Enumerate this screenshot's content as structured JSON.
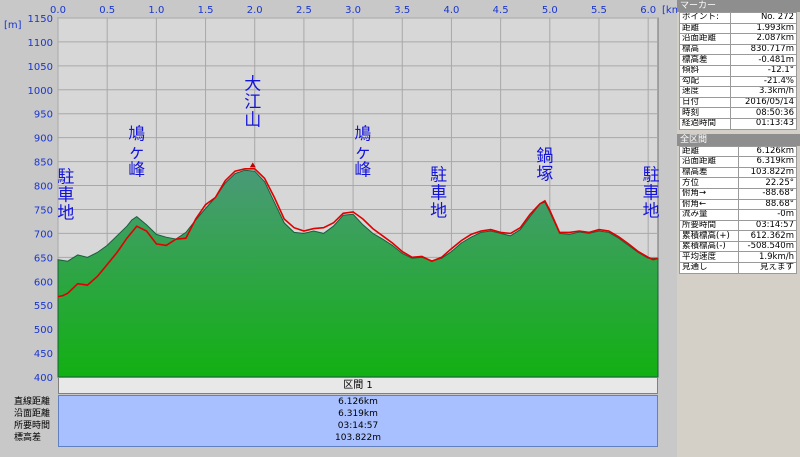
{
  "chart_data": {
    "type": "area",
    "x_unit": "[km]",
    "y_unit": "[m]",
    "xlim": [
      0,
      6.1
    ],
    "ylim": [
      400,
      1150
    ],
    "x_ticks": [
      "0.0",
      "0.5",
      "1.0",
      "1.5",
      "2.0",
      "2.5",
      "3.0",
      "3.5",
      "4.0",
      "4.5",
      "5.0",
      "5.5",
      "6.0"
    ],
    "y_ticks": [
      "400",
      "450",
      "500",
      "550",
      "600",
      "650",
      "700",
      "750",
      "800",
      "850",
      "900",
      "950",
      "1000",
      "1050",
      "1100",
      "1150"
    ],
    "series": [
      {
        "role": "terrain",
        "color": "#2e8b2e",
        "x": [
          0,
          0.1,
          0.2,
          0.3,
          0.4,
          0.5,
          0.6,
          0.7,
          0.75,
          0.8,
          0.9,
          1.0,
          1.1,
          1.2,
          1.3,
          1.4,
          1.5,
          1.6,
          1.7,
          1.8,
          1.9,
          2.0,
          2.1,
          2.2,
          2.3,
          2.4,
          2.5,
          2.6,
          2.7,
          2.8,
          2.9,
          3.0,
          3.1,
          3.2,
          3.3,
          3.4,
          3.5,
          3.6,
          3.7,
          3.8,
          3.9,
          4.0,
          4.1,
          4.2,
          4.3,
          4.4,
          4.5,
          4.6,
          4.7,
          4.8,
          4.9,
          4.95,
          5.0,
          5.1,
          5.2,
          5.3,
          5.4,
          5.5,
          5.6,
          5.7,
          5.8,
          5.9,
          6.0,
          6.1
        ],
        "y": [
          645,
          642,
          655,
          650,
          660,
          675,
          695,
          715,
          728,
          735,
          718,
          698,
          692,
          688,
          702,
          728,
          752,
          775,
          805,
          825,
          832,
          830,
          808,
          765,
          722,
          702,
          700,
          705,
          700,
          715,
          738,
          740,
          718,
          700,
          688,
          675,
          658,
          648,
          650,
          643,
          648,
          662,
          680,
          692,
          702,
          705,
          700,
          695,
          708,
          735,
          762,
          765,
          745,
          700,
          698,
          703,
          700,
          705,
          702,
          690,
          675,
          660,
          648,
          648
        ]
      },
      {
        "role": "gps-track",
        "color": "#e00000",
        "x": [
          0,
          0.05,
          0.1,
          0.2,
          0.3,
          0.4,
          0.5,
          0.6,
          0.7,
          0.8,
          0.9,
          1.0,
          1.1,
          1.2,
          1.3,
          1.4,
          1.5,
          1.6,
          1.7,
          1.8,
          1.9,
          2.0,
          2.1,
          2.2,
          2.3,
          2.4,
          2.5,
          2.6,
          2.7,
          2.8,
          2.9,
          3.0,
          3.1,
          3.2,
          3.3,
          3.4,
          3.5,
          3.6,
          3.7,
          3.8,
          3.9,
          4.0,
          4.1,
          4.2,
          4.3,
          4.4,
          4.5,
          4.6,
          4.7,
          4.8,
          4.9,
          4.95,
          5.0,
          5.1,
          5.2,
          5.3,
          5.4,
          5.5,
          5.6,
          5.7,
          5.8,
          5.9,
          6.0,
          6.05,
          6.1
        ],
        "y": [
          568,
          570,
          575,
          595,
          592,
          610,
          635,
          660,
          690,
          715,
          705,
          678,
          675,
          688,
          690,
          730,
          760,
          775,
          810,
          830,
          835,
          835,
          815,
          775,
          730,
          712,
          705,
          710,
          712,
          722,
          742,
          745,
          730,
          710,
          695,
          680,
          662,
          650,
          652,
          642,
          650,
          668,
          685,
          698,
          705,
          708,
          702,
          700,
          712,
          740,
          762,
          768,
          748,
          702,
          702,
          705,
          702,
          708,
          705,
          693,
          678,
          662,
          650,
          645,
          648
        ]
      }
    ],
    "peak_labels": [
      {
        "lines": [
          "駐",
          "車",
          "地"
        ],
        "x": 0.08,
        "y": 735
      },
      {
        "lines": [
          "鳩",
          "ヶ",
          "峰"
        ],
        "x": 0.8,
        "y": 825
      },
      {
        "lines": [
          "大",
          "江",
          "山"
        ],
        "x": 1.98,
        "y": 930
      },
      {
        "lines": [
          "鳩",
          "ヶ",
          "峰"
        ],
        "x": 3.1,
        "y": 825
      },
      {
        "lines": [
          "駐",
          "車",
          "地"
        ],
        "x": 3.87,
        "y": 740
      },
      {
        "lines": [
          "鍋",
          "塚"
        ],
        "x": 4.95,
        "y": 815
      },
      {
        "lines": [
          "駐",
          "車",
          "地"
        ],
        "x": 6.03,
        "y": 740
      }
    ],
    "grid": true
  },
  "marker_panel": {
    "title": "マーカー",
    "rows": [
      {
        "label": "ポイント:",
        "value": "No. 272"
      },
      {
        "label": "距離",
        "value": "1.993km"
      },
      {
        "label": "沿面距離",
        "value": "2.087km"
      },
      {
        "label": "標高",
        "value": "830.717m"
      },
      {
        "label": "標高差",
        "value": "-0.481m"
      },
      {
        "label": "傾斜",
        "value": "-12.1°"
      },
      {
        "label": "勾配",
        "value": "-21.4%"
      },
      {
        "label": "速度",
        "value": "3.3km/h"
      },
      {
        "label": "日付",
        "value": "2016/05/14"
      },
      {
        "label": "時刻",
        "value": "08:50:36"
      },
      {
        "label": "経過時間",
        "value": "01:13:43"
      }
    ]
  },
  "total_panel": {
    "title": "全区間",
    "rows": [
      {
        "label": "距離",
        "value": "6.126km"
      },
      {
        "label": "沿面距離",
        "value": "6.319km"
      },
      {
        "label": "標高差",
        "value": "103.822m"
      },
      {
        "label": "方位",
        "value": "22.25°"
      },
      {
        "label": "俯角→",
        "value": "-88.68°"
      },
      {
        "label": "俯角←",
        "value": "88.68°"
      },
      {
        "label": "流み量",
        "value": "-0m"
      },
      {
        "label": "所要時間",
        "value": "03:14:57"
      },
      {
        "label": "累積標高(+)",
        "value": "612.362m"
      },
      {
        "label": "累積標高(-)",
        "value": "-508.540m"
      },
      {
        "label": "平均速度",
        "value": "1.9km/h"
      },
      {
        "label": "見通し",
        "value": "見えます"
      }
    ]
  },
  "section": {
    "header": "区間 1",
    "labels": [
      "直線距離",
      "沿面距離",
      "所要時間",
      "標高差"
    ],
    "values": [
      "6.126km",
      "6.319km",
      "03:14:57",
      "103.822m"
    ]
  }
}
